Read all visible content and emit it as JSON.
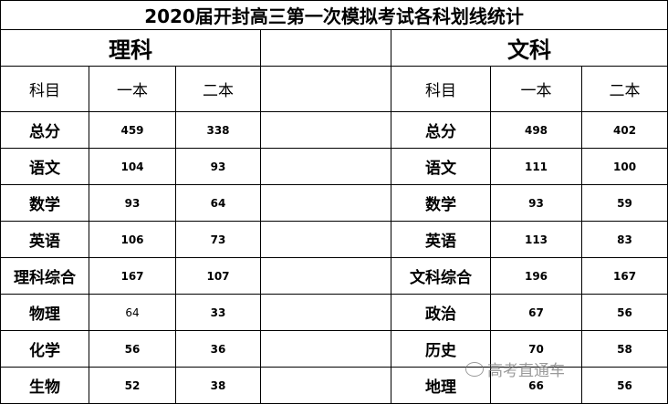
{
  "title": "2020届开封高三第一次模拟考试各科划线统计",
  "science": {
    "label": "理科",
    "headers": [
      "科目",
      "一本",
      "二本"
    ],
    "rows": [
      {
        "subject": "总分",
        "yiben": "459",
        "erben": "338"
      },
      {
        "subject": "语文",
        "yiben": "104",
        "erben": "93"
      },
      {
        "subject": "数学",
        "yiben": "93",
        "erben": "64"
      },
      {
        "subject": "英语",
        "yiben": "106",
        "erben": "73"
      },
      {
        "subject": "理科综合",
        "yiben": "167",
        "erben": "107"
      },
      {
        "subject": "物理",
        "yiben": "64",
        "erben": "33"
      },
      {
        "subject": "化学",
        "yiben": "56",
        "erben": "36"
      },
      {
        "subject": "生物",
        "yiben": "52",
        "erben": "38"
      }
    ]
  },
  "liberal": {
    "label": "文科",
    "headers": [
      "科目",
      "一本",
      "二本"
    ],
    "rows": [
      {
        "subject": "总分",
        "yiben": "498",
        "erben": "402"
      },
      {
        "subject": "语文",
        "yiben": "111",
        "erben": "100"
      },
      {
        "subject": "数学",
        "yiben": "93",
        "erben": "59"
      },
      {
        "subject": "英语",
        "yiben": "113",
        "erben": "83"
      },
      {
        "subject": "文科综合",
        "yiben": "196",
        "erben": "167"
      },
      {
        "subject": "政治",
        "yiben": "67",
        "erben": "56"
      },
      {
        "subject": "历史",
        "yiben": "70",
        "erben": "58"
      },
      {
        "subject": "地理",
        "yiben": "66",
        "erben": "56"
      }
    ]
  },
  "watermark": {
    "text": "高考直通车",
    "icon": "wechat-icon"
  }
}
